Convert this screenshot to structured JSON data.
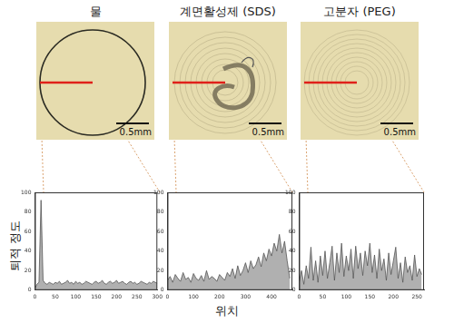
{
  "axis_labels": {
    "y": "퇴적 정도",
    "x": "위치"
  },
  "chart_data": [
    {
      "type": "line",
      "title": "물",
      "annotation": "0.5mm",
      "color": "#b0b0b0",
      "x": [
        0,
        5,
        10,
        15,
        20,
        25,
        30,
        35,
        40,
        45,
        50,
        55,
        60,
        65,
        70,
        75,
        80,
        85,
        90,
        95,
        100,
        105,
        110,
        115,
        120,
        125,
        130,
        135,
        140,
        145,
        150,
        155,
        160,
        165,
        170,
        175,
        180,
        185,
        190,
        195,
        200,
        205,
        210,
        215,
        220,
        225,
        230,
        235,
        240,
        245,
        250,
        255,
        260,
        265,
        270,
        275,
        280,
        285,
        290,
        295,
        300
      ],
      "values": [
        2,
        6,
        8,
        92,
        10,
        7,
        6,
        8,
        7,
        6,
        8,
        7,
        9,
        6,
        7,
        8,
        10,
        7,
        8,
        6,
        9,
        7,
        8,
        6,
        7,
        9,
        8,
        7,
        6,
        8,
        9,
        7,
        8,
        10,
        7,
        6,
        8,
        9,
        7,
        8,
        10,
        7,
        8,
        9,
        7,
        6,
        8,
        9,
        7,
        8,
        6,
        7,
        9,
        8,
        7,
        6,
        8,
        7,
        9,
        8,
        7
      ],
      "xlim": [
        0,
        300
      ],
      "xticks": [
        0,
        50,
        100,
        150,
        200,
        250,
        300
      ],
      "ylim": [
        0,
        100
      ],
      "yticks": [
        0,
        20,
        40,
        60,
        80,
        100
      ],
      "grid": false
    },
    {
      "type": "line",
      "title": "계면활성제 (SDS)",
      "annotation": "0.5mm",
      "color": "#b0b0b0",
      "x": [
        0,
        10,
        20,
        30,
        40,
        50,
        60,
        70,
        80,
        90,
        100,
        110,
        120,
        130,
        140,
        150,
        160,
        170,
        180,
        190,
        200,
        210,
        220,
        230,
        240,
        250,
        260,
        270,
        280,
        290,
        300,
        310,
        320,
        330,
        340,
        350,
        360,
        370,
        380,
        390,
        400,
        410,
        420,
        430,
        440,
        450,
        460,
        470
      ],
      "values": [
        10,
        14,
        8,
        16,
        12,
        9,
        18,
        11,
        13,
        8,
        17,
        12,
        10,
        15,
        9,
        20,
        11,
        14,
        12,
        9,
        16,
        13,
        10,
        18,
        14,
        22,
        12,
        25,
        15,
        20,
        28,
        18,
        30,
        22,
        26,
        34,
        24,
        38,
        30,
        42,
        35,
        48,
        40,
        57,
        38,
        50,
        30,
        12
      ],
      "xlim": [
        0,
        480
      ],
      "xticks": [
        0,
        100,
        200,
        300,
        400
      ],
      "ylim": [
        0,
        100
      ],
      "yticks": [
        0,
        20,
        40,
        60,
        80,
        100
      ],
      "grid": false
    },
    {
      "type": "line",
      "title": "고분자 (PEG)",
      "annotation": "0.5mm",
      "color": "#b0b0b0",
      "x": [
        0,
        5,
        10,
        15,
        20,
        25,
        30,
        35,
        40,
        45,
        50,
        55,
        60,
        65,
        70,
        75,
        80,
        85,
        90,
        95,
        100,
        105,
        110,
        115,
        120,
        125,
        130,
        135,
        140,
        145,
        150,
        155,
        160,
        165,
        170,
        175,
        180,
        185,
        190,
        195,
        200,
        205,
        210,
        215,
        220,
        225,
        230,
        235,
        240,
        245,
        250,
        255,
        260
      ],
      "values": [
        8,
        20,
        6,
        25,
        12,
        44,
        10,
        30,
        8,
        35,
        15,
        40,
        12,
        28,
        45,
        10,
        38,
        18,
        48,
        14,
        35,
        20,
        42,
        12,
        45,
        22,
        38,
        15,
        40,
        25,
        48,
        18,
        36,
        12,
        42,
        20,
        32,
        10,
        38,
        16,
        30,
        44,
        12,
        28,
        8,
        34,
        18,
        25,
        10,
        36,
        14,
        22,
        16
      ],
      "xlim": [
        0,
        265
      ],
      "xticks": [
        0,
        50,
        100,
        150,
        200,
        250
      ],
      "ylim": [
        0,
        100
      ],
      "yticks": [
        0,
        20,
        40,
        60,
        80,
        100
      ],
      "grid": false
    }
  ]
}
